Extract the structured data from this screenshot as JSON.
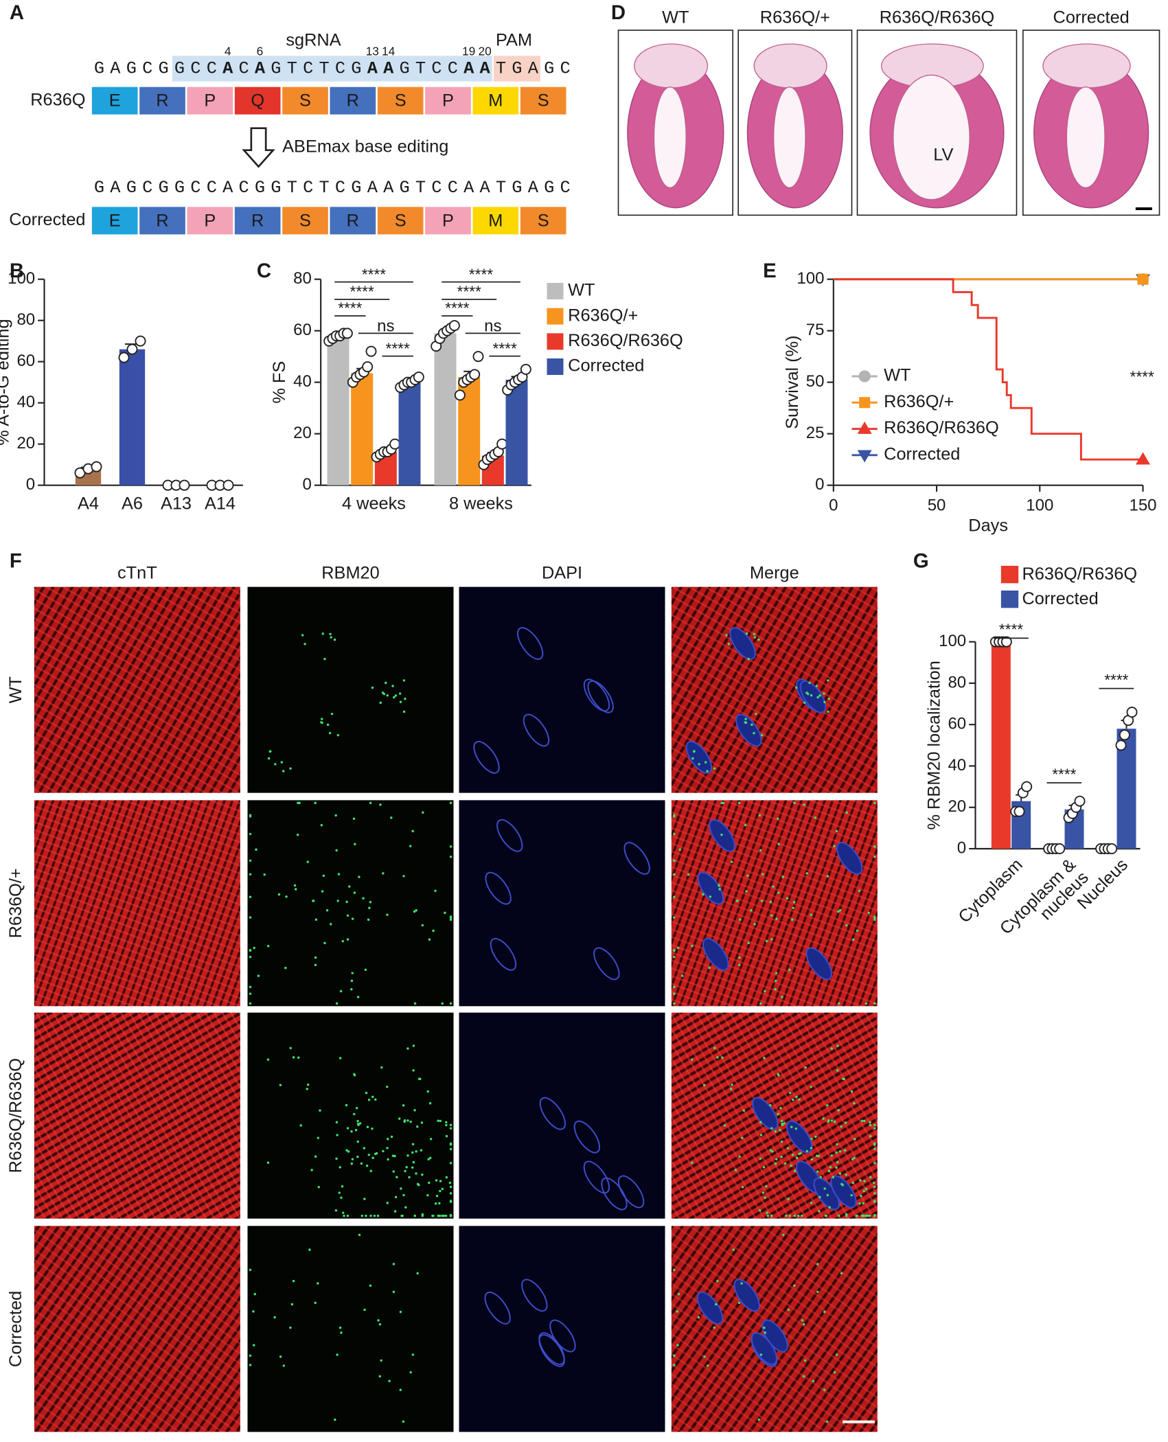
{
  "panel_labels": [
    "A",
    "B",
    "C",
    "D",
    "E",
    "F",
    "G"
  ],
  "sequence_panel": {
    "sgrna_label": "sgRNA",
    "pam_label": "PAM",
    "edit_positions": [
      4,
      6,
      13,
      14,
      19,
      20
    ],
    "position_colors": [
      "#b07a3c",
      "#e3262b",
      "#b07a3c",
      "#35a845",
      "#b07a3c",
      "#35a845"
    ],
    "sequences": [
      [
        "G",
        "A",
        "G",
        "C",
        "G",
        "G",
        "C",
        "C",
        "A",
        "C",
        "A",
        "G",
        "T",
        "C",
        "T",
        "C",
        "G",
        "A",
        "A",
        "G",
        "T",
        "C",
        "C",
        "A",
        "A",
        "T",
        "G",
        "A",
        "G",
        "C"
      ],
      [
        "G",
        "A",
        "G",
        "C",
        "G",
        "G",
        "C",
        "C",
        "A",
        "C",
        "G",
        "G",
        "T",
        "C",
        "T",
        "C",
        "G",
        "A",
        "A",
        "G",
        "T",
        "C",
        "C",
        "A",
        "A",
        "T",
        "G",
        "A",
        "G",
        "C"
      ]
    ],
    "rows": [
      {
        "label": "R636Q",
        "residues": [
          "E",
          "R",
          "P",
          "Q",
          "S",
          "R",
          "S",
          "P",
          "M",
          "S"
        ]
      },
      {
        "label": "Corrected",
        "residues": [
          "E",
          "R",
          "P",
          "R",
          "S",
          "R",
          "S",
          "P",
          "M",
          "S"
        ]
      }
    ],
    "residue_colors": {
      "E": "#1ea3dc",
      "R": "#4470bd",
      "P": "#f3a3b5",
      "Q": "#e2352b",
      "S": "#f28a2b",
      "M": "#fcd800"
    },
    "editing_label": "ABEmax base editing"
  },
  "histology_panel": {
    "columns": [
      "WT",
      "R636Q/+",
      "R636Q/R636Q",
      "Corrected"
    ],
    "cavity_label": "LV"
  },
  "microscopy_panel": {
    "channels": [
      {
        "name": "cTnT",
        "color": "#e4262b"
      },
      {
        "name": "RBM20",
        "color": "#1f9e48"
      },
      {
        "name": "DAPI",
        "color": "#33389a"
      },
      {
        "name": "Merge",
        "color": "#1a1a1a"
      }
    ],
    "rows": [
      "WT",
      "R636Q/+",
      "R636Q/R636Q",
      "Corrected"
    ]
  },
  "chart_data": [
    {
      "type": "bar",
      "ylabel": "% A-to-G editing",
      "categories": [
        "A4",
        "A6",
        "A13",
        "A14"
      ],
      "values": [
        7.7,
        66,
        0,
        0
      ],
      "errors": [
        1,
        2.5,
        0,
        0
      ],
      "points": [
        [
          6,
          8,
          9
        ],
        [
          62,
          66,
          70
        ],
        [
          0,
          0,
          0
        ],
        [
          0,
          0,
          0
        ]
      ],
      "colors": [
        "#a8734c",
        "#3a4fa8",
        "#a8734c",
        "#3a4fa8"
      ],
      "ylim": [
        0,
        100
      ],
      "yticks": [
        0,
        20,
        40,
        60,
        80,
        100
      ]
    },
    {
      "type": "grouped_bar",
      "ylabel": "% FS",
      "categories": [
        "4 weeks",
        "8 weeks"
      ],
      "series": [
        {
          "name": "WT",
          "color": "#bdbdbd",
          "values": [
            57.5,
            59
          ],
          "errors": [
            0.8,
            1.2
          ],
          "points": [
            [
              56,
              57,
              58,
              58,
              59,
              59
            ],
            [
              54,
              57,
              59,
              60,
              61,
              62
            ]
          ]
        },
        {
          "name": "R636Q/+",
          "color": "#f7941d",
          "values": [
            43.5,
            42
          ],
          "errors": [
            1.8,
            2.2
          ],
          "points": [
            [
              40,
              42,
              43,
              44,
              46,
              52
            ],
            [
              35,
              40,
              41,
              42,
              43,
              50
            ]
          ]
        },
        {
          "name": "R636Q/R636Q",
          "color": "#e8392b",
          "values": [
            13,
            11.5
          ],
          "errors": [
            0.7,
            1.2
          ],
          "points": [
            [
              11,
              12,
              13,
              13,
              14,
              16
            ],
            [
              8,
              10,
              11,
              12,
              13,
              16
            ]
          ]
        },
        {
          "name": "Corrected",
          "color": "#3954a5",
          "values": [
            40,
            41
          ],
          "errors": [
            0.6,
            1.2
          ],
          "points": [
            [
              38,
              39,
              40,
              40,
              41,
              42
            ],
            [
              37,
              39,
              40,
              41,
              42,
              45
            ]
          ]
        }
      ],
      "annotations": [
        [
          "****",
          "****",
          "****",
          "ns",
          "****"
        ],
        [
          "****",
          "****",
          "****",
          "ns",
          "****"
        ]
      ],
      "ylim": [
        0,
        80
      ],
      "yticks": [
        0,
        20,
        40,
        60,
        80
      ],
      "legend": "right"
    },
    {
      "type": "line",
      "xlabel": "Days",
      "ylabel": "Survival (%)",
      "annotation": "****",
      "series": [
        {
          "name": "WT",
          "color": "#b3b3b3",
          "marker": "circle",
          "x": [
            0,
            150
          ],
          "values": [
            100,
            100
          ]
        },
        {
          "name": "R636Q/+",
          "color": "#f7941d",
          "marker": "square",
          "x": [
            0,
            150
          ],
          "values": [
            100,
            100
          ]
        },
        {
          "name": "R636Q/R636Q",
          "color": "#e8392b",
          "marker": "triangle-up",
          "x": [
            0,
            58,
            58,
            67,
            67,
            70,
            70,
            79,
            79,
            82,
            82,
            84,
            84,
            86,
            86,
            96,
            96,
            120,
            120,
            150
          ],
          "values": [
            100,
            100,
            93.75,
            93.75,
            87.5,
            87.5,
            81.25,
            81.25,
            56.25,
            56.25,
            50,
            50,
            43.75,
            43.75,
            37.5,
            37.5,
            25,
            25,
            12.5,
            12.5
          ]
        },
        {
          "name": "Corrected",
          "color": "#3954a5",
          "marker": "triangle-down",
          "x": [
            0,
            150
          ],
          "values": [
            100,
            100
          ]
        }
      ],
      "xlim": [
        0,
        150
      ],
      "xticks": [
        0,
        50,
        100,
        150
      ],
      "ylim": [
        0,
        100
      ],
      "yticks": [
        0,
        25,
        50,
        75,
        100
      ],
      "legend": "left"
    },
    {
      "type": "grouped_bar",
      "ylabel": "% RBM20 localization",
      "categories": [
        [
          "Cytoplasm"
        ],
        [
          "Cytoplasm &",
          "nucleus"
        ],
        [
          "Nucleus"
        ]
      ],
      "series": [
        {
          "name": "R636Q/R636Q",
          "color": "#e8392b",
          "values": [
            100,
            0,
            0
          ],
          "errors": [
            0,
            0,
            0
          ],
          "points": [
            [
              100,
              100,
              100,
              100
            ],
            [
              0,
              0,
              0,
              0
            ],
            [
              0,
              0,
              0,
              0
            ]
          ]
        },
        {
          "name": "Corrected",
          "color": "#3954a5",
          "values": [
            23,
            19,
            58
          ],
          "errors": [
            3,
            2,
            4
          ],
          "points": [
            [
              18,
              18,
              27,
              30
            ],
            [
              15,
              17,
              20,
              23
            ],
            [
              50,
              55,
              62,
              66
            ]
          ]
        }
      ],
      "annotations": [
        "****",
        "****",
        "****"
      ],
      "ylim": [
        0,
        100
      ],
      "yticks": [
        0,
        20,
        40,
        60,
        80,
        100
      ],
      "legend": "top"
    }
  ]
}
